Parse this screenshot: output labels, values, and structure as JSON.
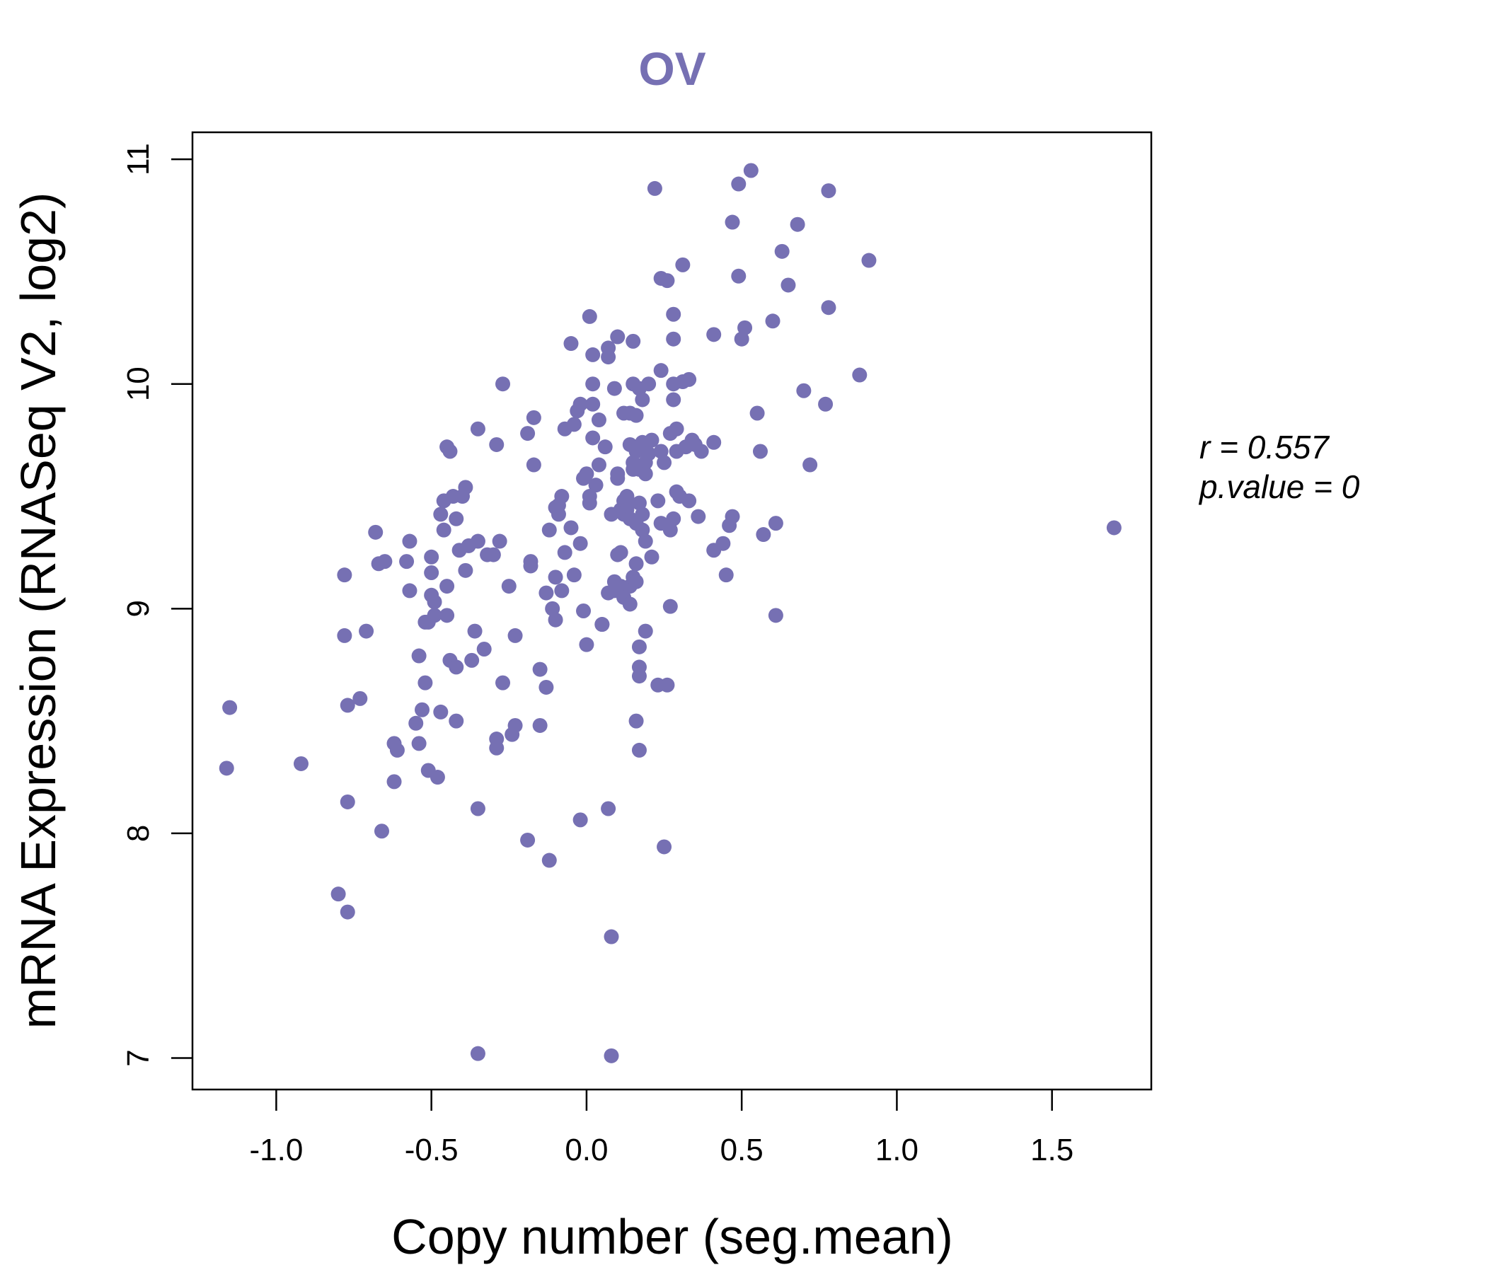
{
  "chart_data": {
    "type": "scatter",
    "title": "OV",
    "xlabel": "Copy number (seg.mean)",
    "ylabel": "mRNA Expression (RNASeq V2, log2)",
    "xlim": [
      -1.27,
      1.82
    ],
    "ylim": [
      6.86,
      11.12
    ],
    "xticks": [
      -1.0,
      -0.5,
      0.0,
      0.5,
      1.0,
      1.5
    ],
    "xtick_labels": [
      "-1.0",
      "-0.5",
      "0.0",
      "0.5",
      "1.0",
      "1.5"
    ],
    "yticks": [
      7,
      8,
      9,
      10,
      11
    ],
    "ytick_labels": [
      "7",
      "8",
      "9",
      "10",
      "11"
    ],
    "annotations": {
      "r_text": "r = 0.557",
      "p_text": "p.value = 0"
    },
    "color": "#7670b3",
    "points": [
      [
        -1.15,
        8.56
      ],
      [
        -1.16,
        8.29
      ],
      [
        -0.92,
        8.31
      ],
      [
        -0.8,
        7.73
      ],
      [
        -0.77,
        7.65
      ],
      [
        -0.77,
        8.14
      ],
      [
        -0.77,
        8.57
      ],
      [
        -0.78,
        8.88
      ],
      [
        -0.78,
        9.15
      ],
      [
        -0.73,
        8.6
      ],
      [
        -0.71,
        8.9
      ],
      [
        -0.68,
        9.34
      ],
      [
        -0.67,
        9.2
      ],
      [
        -0.65,
        9.21
      ],
      [
        -0.66,
        8.01
      ],
      [
        -0.62,
        8.4
      ],
      [
        -0.61,
        8.37
      ],
      [
        -0.62,
        8.23
      ],
      [
        -0.58,
        9.21
      ],
      [
        -0.57,
        9.08
      ],
      [
        -0.57,
        9.3
      ],
      [
        -0.55,
        8.49
      ],
      [
        -0.54,
        8.4
      ],
      [
        -0.54,
        8.79
      ],
      [
        -0.53,
        8.55
      ],
      [
        -0.52,
        8.67
      ],
      [
        -0.52,
        8.94
      ],
      [
        -0.51,
        8.94
      ],
      [
        -0.51,
        8.28
      ],
      [
        -0.5,
        9.23
      ],
      [
        -0.5,
        9.16
      ],
      [
        -0.5,
        9.06
      ],
      [
        -0.49,
        9.03
      ],
      [
        -0.49,
        8.97
      ],
      [
        -0.48,
        8.25
      ],
      [
        -0.47,
        8.54
      ],
      [
        -0.47,
        9.42
      ],
      [
        -0.46,
        9.48
      ],
      [
        -0.46,
        9.35
      ],
      [
        -0.45,
        9.72
      ],
      [
        -0.45,
        9.1
      ],
      [
        -0.45,
        8.97
      ],
      [
        -0.44,
        9.7
      ],
      [
        -0.44,
        8.77
      ],
      [
        -0.43,
        9.5
      ],
      [
        -0.42,
        8.74
      ],
      [
        -0.42,
        8.5
      ],
      [
        -0.42,
        9.4
      ],
      [
        -0.41,
        9.26
      ],
      [
        -0.4,
        9.5
      ],
      [
        -0.39,
        9.54
      ],
      [
        -0.39,
        9.17
      ],
      [
        -0.38,
        9.28
      ],
      [
        -0.37,
        8.77
      ],
      [
        -0.36,
        8.9
      ],
      [
        -0.35,
        9.8
      ],
      [
        -0.35,
        9.3
      ],
      [
        -0.35,
        8.11
      ],
      [
        -0.35,
        7.02
      ],
      [
        -0.33,
        8.82
      ],
      [
        -0.32,
        9.24
      ],
      [
        -0.3,
        9.24
      ],
      [
        -0.29,
        9.73
      ],
      [
        -0.29,
        8.42
      ],
      [
        -0.29,
        8.38
      ],
      [
        -0.28,
        9.3
      ],
      [
        -0.27,
        8.67
      ],
      [
        -0.27,
        10.0
      ],
      [
        -0.25,
        9.1
      ],
      [
        -0.24,
        8.44
      ],
      [
        -0.23,
        8.88
      ],
      [
        -0.23,
        8.48
      ],
      [
        -0.19,
        7.97
      ],
      [
        -0.19,
        9.78
      ],
      [
        -0.18,
        9.21
      ],
      [
        -0.18,
        9.19
      ],
      [
        -0.17,
        9.85
      ],
      [
        -0.17,
        9.64
      ],
      [
        -0.15,
        8.73
      ],
      [
        -0.15,
        8.48
      ],
      [
        -0.13,
        8.65
      ],
      [
        -0.13,
        9.07
      ],
      [
        -0.12,
        7.88
      ],
      [
        -0.12,
        9.35
      ],
      [
        -0.11,
        9.0
      ],
      [
        -0.1,
        8.95
      ],
      [
        -0.1,
        9.14
      ],
      [
        -0.1,
        9.45
      ],
      [
        -0.09,
        9.46
      ],
      [
        -0.09,
        9.42
      ],
      [
        -0.08,
        9.08
      ],
      [
        -0.08,
        9.5
      ],
      [
        -0.07,
        9.8
      ],
      [
        -0.07,
        9.25
      ],
      [
        -0.05,
        9.36
      ],
      [
        -0.05,
        10.18
      ],
      [
        -0.04,
        9.82
      ],
      [
        -0.04,
        9.15
      ],
      [
        -0.03,
        9.88
      ],
      [
        -0.02,
        9.91
      ],
      [
        -0.02,
        9.29
      ],
      [
        -0.02,
        8.06
      ],
      [
        -0.01,
        8.99
      ],
      [
        -0.01,
        9.58
      ],
      [
        0.0,
        9.6
      ],
      [
        0.0,
        8.84
      ],
      [
        0.01,
        9.5
      ],
      [
        0.01,
        9.47
      ],
      [
        0.01,
        10.3
      ],
      [
        0.02,
        9.76
      ],
      [
        0.02,
        10.0
      ],
      [
        0.02,
        10.13
      ],
      [
        0.02,
        9.91
      ],
      [
        0.03,
        9.55
      ],
      [
        0.04,
        9.64
      ],
      [
        0.04,
        9.84
      ],
      [
        0.05,
        8.93
      ],
      [
        0.05,
        8.93
      ],
      [
        0.06,
        9.72
      ],
      [
        0.07,
        10.16
      ],
      [
        0.07,
        10.12
      ],
      [
        0.07,
        9.07
      ],
      [
        0.07,
        8.11
      ],
      [
        0.08,
        9.42
      ],
      [
        0.08,
        7.54
      ],
      [
        0.08,
        7.01
      ],
      [
        0.09,
        9.08
      ],
      [
        0.09,
        9.12
      ],
      [
        0.09,
        9.98
      ],
      [
        0.1,
        9.6
      ],
      [
        0.1,
        9.58
      ],
      [
        0.1,
        9.24
      ],
      [
        0.1,
        10.21
      ],
      [
        0.11,
        9.1
      ],
      [
        0.11,
        9.44
      ],
      [
        0.11,
        9.25
      ],
      [
        0.12,
        9.42
      ],
      [
        0.12,
        9.05
      ],
      [
        0.12,
        9.48
      ],
      [
        0.12,
        9.87
      ],
      [
        0.13,
        9.47
      ],
      [
        0.13,
        9.5
      ],
      [
        0.13,
        9.44
      ],
      [
        0.14,
        9.87
      ],
      [
        0.14,
        9.02
      ],
      [
        0.14,
        9.1
      ],
      [
        0.14,
        9.4
      ],
      [
        0.14,
        9.73
      ],
      [
        0.15,
        9.65
      ],
      [
        0.15,
        9.62
      ],
      [
        0.15,
        10.19
      ],
      [
        0.15,
        10.0
      ],
      [
        0.15,
        9.14
      ],
      [
        0.16,
        9.86
      ],
      [
        0.16,
        9.7
      ],
      [
        0.16,
        9.38
      ],
      [
        0.16,
        9.2
      ],
      [
        0.16,
        9.12
      ],
      [
        0.16,
        8.5
      ],
      [
        0.17,
        9.98
      ],
      [
        0.17,
        9.62
      ],
      [
        0.17,
        9.47
      ],
      [
        0.17,
        8.83
      ],
      [
        0.17,
        8.74
      ],
      [
        0.17,
        8.7
      ],
      [
        0.17,
        8.37
      ],
      [
        0.18,
        9.42
      ],
      [
        0.18,
        9.35
      ],
      [
        0.18,
        9.74
      ],
      [
        0.18,
        9.93
      ],
      [
        0.19,
        9.3
      ],
      [
        0.19,
        9.65
      ],
      [
        0.19,
        8.9
      ],
      [
        0.19,
        9.6
      ],
      [
        0.2,
        9.69
      ],
      [
        0.2,
        10.0
      ],
      [
        0.21,
        9.75
      ],
      [
        0.21,
        9.23
      ],
      [
        0.22,
        10.87
      ],
      [
        0.23,
        9.48
      ],
      [
        0.23,
        8.66
      ],
      [
        0.24,
        10.47
      ],
      [
        0.24,
        10.06
      ],
      [
        0.24,
        9.38
      ],
      [
        0.24,
        9.7
      ],
      [
        0.25,
        7.94
      ],
      [
        0.25,
        9.65
      ],
      [
        0.26,
        8.66
      ],
      [
        0.26,
        10.46
      ],
      [
        0.27,
        9.35
      ],
      [
        0.27,
        9.78
      ],
      [
        0.27,
        9.01
      ],
      [
        0.28,
        10.0
      ],
      [
        0.28,
        9.93
      ],
      [
        0.28,
        10.31
      ],
      [
        0.28,
        10.2
      ],
      [
        0.28,
        9.4
      ],
      [
        0.29,
        9.7
      ],
      [
        0.29,
        9.52
      ],
      [
        0.29,
        9.8
      ],
      [
        0.3,
        9.5
      ],
      [
        0.31,
        10.53
      ],
      [
        0.31,
        10.01
      ],
      [
        0.32,
        9.72
      ],
      [
        0.33,
        10.02
      ],
      [
        0.33,
        9.48
      ],
      [
        0.34,
        9.75
      ],
      [
        0.35,
        9.73
      ],
      [
        0.36,
        9.41
      ],
      [
        0.37,
        9.7
      ],
      [
        0.41,
        9.74
      ],
      [
        0.41,
        9.26
      ],
      [
        0.41,
        10.22
      ],
      [
        0.44,
        9.29
      ],
      [
        0.45,
        9.15
      ],
      [
        0.46,
        9.37
      ],
      [
        0.47,
        9.41
      ],
      [
        0.47,
        10.72
      ],
      [
        0.49,
        10.89
      ],
      [
        0.49,
        10.48
      ],
      [
        0.5,
        10.2
      ],
      [
        0.51,
        10.25
      ],
      [
        0.53,
        10.95
      ],
      [
        0.55,
        9.87
      ],
      [
        0.56,
        9.7
      ],
      [
        0.57,
        9.33
      ],
      [
        0.6,
        10.28
      ],
      [
        0.61,
        9.38
      ],
      [
        0.61,
        8.97
      ],
      [
        0.63,
        10.59
      ],
      [
        0.65,
        10.44
      ],
      [
        0.68,
        10.71
      ],
      [
        0.7,
        9.97
      ],
      [
        0.72,
        9.64
      ],
      [
        0.77,
        9.91
      ],
      [
        0.78,
        10.86
      ],
      [
        0.78,
        10.34
      ],
      [
        0.88,
        10.04
      ],
      [
        0.91,
        10.55
      ],
      [
        1.7,
        9.36
      ]
    ]
  }
}
